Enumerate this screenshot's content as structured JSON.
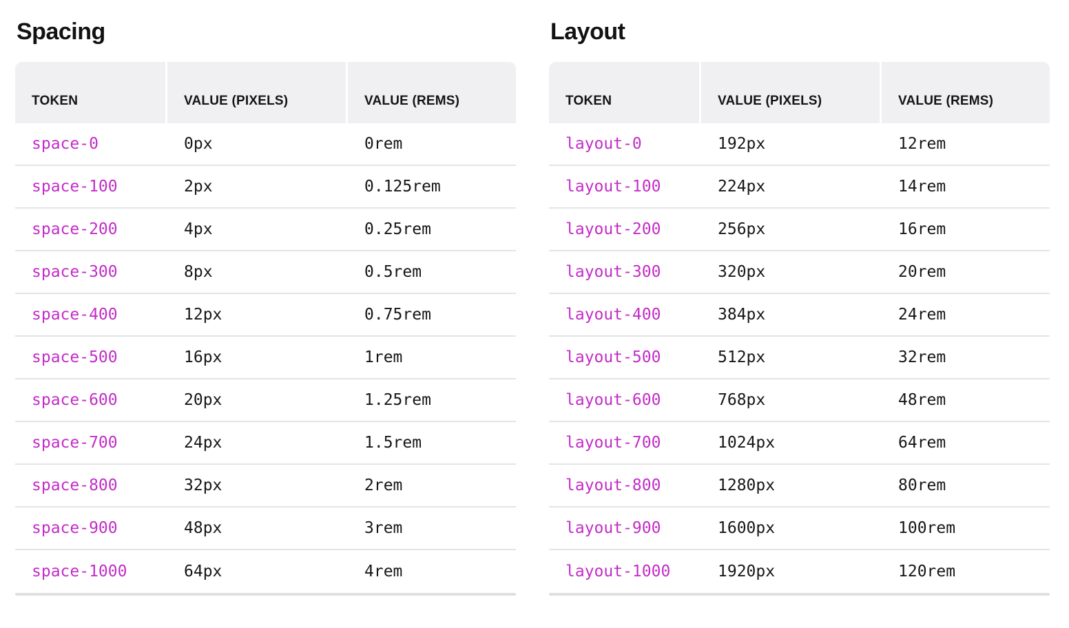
{
  "colors": {
    "token": "#c32cc7",
    "header_bg": "#f0f0f2",
    "row_border": "#e4e4e7",
    "bottom_border": "#dfdfe3",
    "heading": "#121212",
    "value_text": "#161616"
  },
  "tables": [
    {
      "title": "Spacing",
      "columns": [
        "TOKEN",
        "VALUE (PIXELS)",
        "VALUE (REMS)"
      ],
      "rows": [
        {
          "token": "space-0",
          "px": "0px",
          "rem": "0rem"
        },
        {
          "token": "space-100",
          "px": "2px",
          "rem": "0.125rem"
        },
        {
          "token": "space-200",
          "px": "4px",
          "rem": "0.25rem"
        },
        {
          "token": "space-300",
          "px": "8px",
          "rem": "0.5rem"
        },
        {
          "token": "space-400",
          "px": "12px",
          "rem": "0.75rem"
        },
        {
          "token": "space-500",
          "px": "16px",
          "rem": "1rem"
        },
        {
          "token": "space-600",
          "px": "20px",
          "rem": "1.25rem"
        },
        {
          "token": "space-700",
          "px": "24px",
          "rem": "1.5rem"
        },
        {
          "token": "space-800",
          "px": "32px",
          "rem": "2rem"
        },
        {
          "token": "space-900",
          "px": "48px",
          "rem": "3rem"
        },
        {
          "token": "space-1000",
          "px": "64px",
          "rem": "4rem"
        }
      ]
    },
    {
      "title": "Layout",
      "columns": [
        "TOKEN",
        "VALUE (PIXELS)",
        "VALUE (REMS)"
      ],
      "rows": [
        {
          "token": "layout-0",
          "px": "192px",
          "rem": "12rem"
        },
        {
          "token": "layout-100",
          "px": "224px",
          "rem": "14rem"
        },
        {
          "token": "layout-200",
          "px": "256px",
          "rem": "16rem"
        },
        {
          "token": "layout-300",
          "px": "320px",
          "rem": "20rem"
        },
        {
          "token": "layout-400",
          "px": "384px",
          "rem": "24rem"
        },
        {
          "token": "layout-500",
          "px": "512px",
          "rem": "32rem"
        },
        {
          "token": "layout-600",
          "px": "768px",
          "rem": "48rem"
        },
        {
          "token": "layout-700",
          "px": "1024px",
          "rem": "64rem"
        },
        {
          "token": "layout-800",
          "px": "1280px",
          "rem": "80rem"
        },
        {
          "token": "layout-900",
          "px": "1600px",
          "rem": "100rem"
        },
        {
          "token": "layout-1000",
          "px": "1920px",
          "rem": "120rem"
        }
      ]
    }
  ]
}
